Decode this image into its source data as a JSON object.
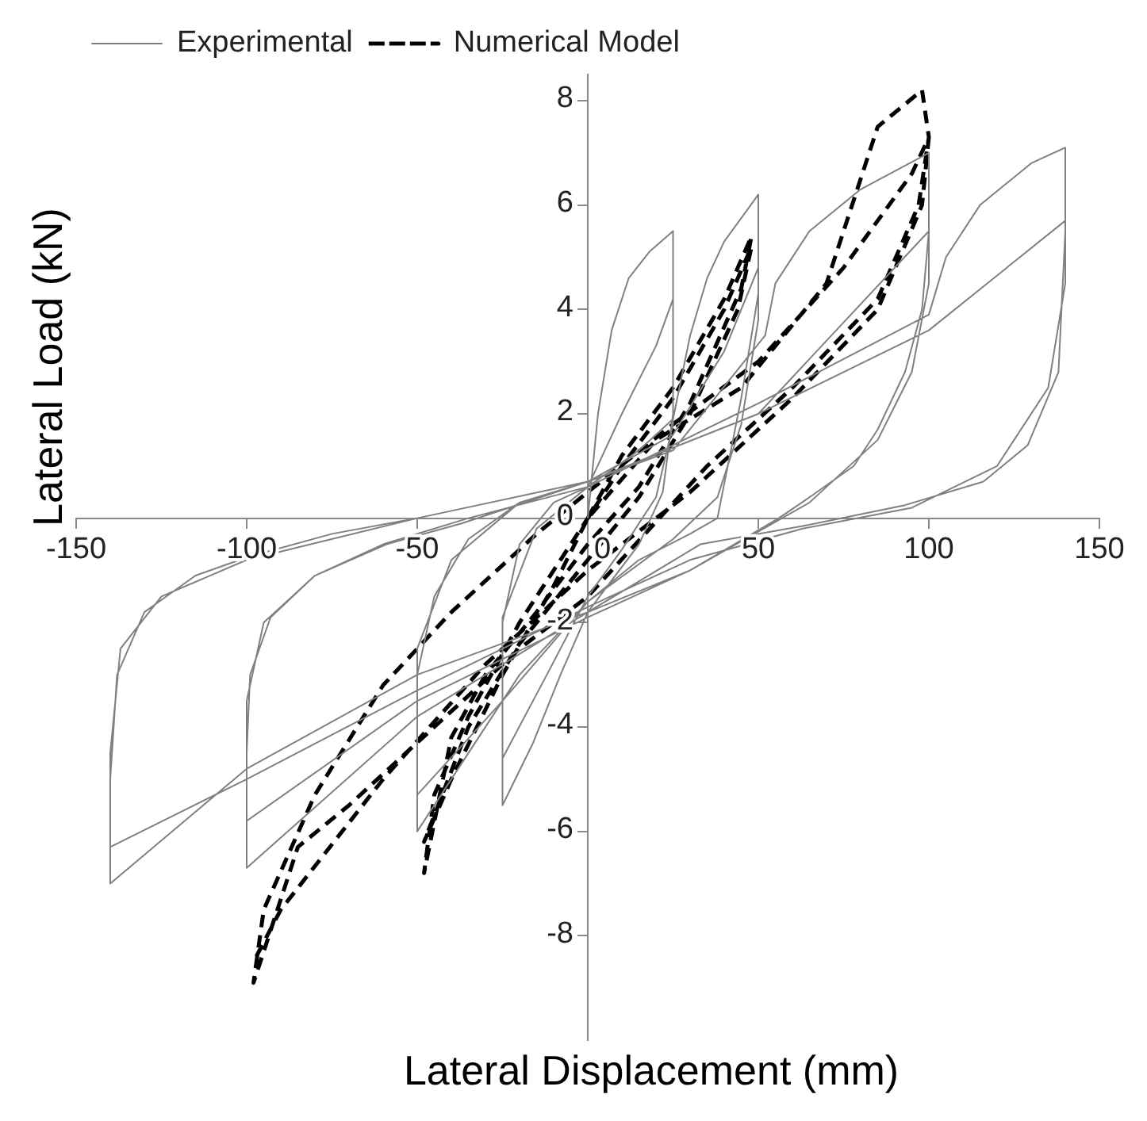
{
  "chart_data": {
    "type": "line",
    "xlabel": "Lateral Displacement (mm)",
    "ylabel": "Lateral Load (kN)",
    "xlim": [
      -150,
      150
    ],
    "ylim": [
      -10,
      8.5
    ],
    "xticks": [
      -150,
      -100,
      -50,
      0,
      50,
      100,
      150
    ],
    "yticks": [
      -8,
      -6,
      -4,
      -2,
      0,
      2,
      4,
      6,
      8
    ],
    "grid": false,
    "legend": "top left",
    "marker": "none",
    "series": [
      {
        "name": "Experimental",
        "color": "#808080",
        "line_style": "solid",
        "x": [
          0,
          3,
          7,
          12,
          18,
          25,
          25,
          22,
          15,
          0,
          -8,
          -16,
          -25,
          -25,
          -20,
          -10,
          0,
          10,
          20,
          25,
          25,
          20,
          10,
          0,
          -12,
          -25,
          -25,
          -15,
          0,
          15,
          25,
          30,
          35,
          40,
          50,
          50,
          45,
          38,
          30,
          15,
          0,
          -20,
          -35,
          -50,
          -50,
          -45,
          -35,
          -20,
          0,
          25,
          40,
          50,
          50,
          45,
          38,
          25,
          0,
          -25,
          -50,
          -50,
          -40,
          -20,
          0,
          25,
          52,
          55,
          65,
          80,
          100,
          100,
          98,
          93,
          85,
          78,
          65,
          56,
          30,
          0,
          -50,
          -100,
          -100,
          -99,
          -93,
          -80,
          -59,
          -37,
          0,
          50,
          100,
          100,
          95,
          85,
          65,
          30,
          0,
          -50,
          -100,
          -100,
          -95,
          -80,
          -60,
          -35,
          0,
          50,
          100,
          105,
          115,
          130,
          140,
          140,
          138,
          129,
          116,
          93,
          63,
          33,
          0,
          -50,
          -100,
          -140,
          -140,
          -138,
          -130,
          -115,
          -100,
          -75,
          -50,
          0,
          50,
          100,
          140,
          140,
          135,
          120,
          95,
          63,
          30,
          0,
          -50,
          -100,
          -140,
          -140,
          -137,
          -125,
          -100,
          -50,
          0
        ],
        "values": [
          0,
          2,
          3.6,
          4.6,
          5.1,
          5.5,
          2,
          0.5,
          -0.5,
          -1.8,
          -3,
          -4.3,
          -5.5,
          -2,
          -0.5,
          0.3,
          0.6,
          2,
          3.3,
          4.2,
          1.8,
          0.4,
          -0.6,
          -1.5,
          -3,
          -4.6,
          -1.9,
          -0.2,
          0.6,
          1.3,
          1.9,
          3.5,
          4.6,
          5.3,
          6.2,
          4.3,
          2.3,
          0,
          -0.3,
          -0.8,
          -1.6,
          -3,
          -4.5,
          -6,
          -3,
          -1.5,
          -0.4,
          0.3,
          0.7,
          1.6,
          3.2,
          4.8,
          3.8,
          1.8,
          0.4,
          -0.4,
          -1.6,
          -3.5,
          -5.3,
          -2.5,
          -0.8,
          0.3,
          0.7,
          1.3,
          3.5,
          4.5,
          5.5,
          6.3,
          7,
          5.5,
          4,
          2.8,
          1.7,
          1,
          0.4,
          0,
          -1,
          -1.8,
          -3.8,
          -6.7,
          -4.5,
          -3,
          -1.9,
          -1.1,
          -0.5,
          -0.1,
          0.7,
          2,
          5.5,
          4.5,
          2.8,
          1.5,
          0.3,
          -1,
          -1.9,
          -3.5,
          -5.8,
          -3.5,
          -2,
          -1.1,
          -0.5,
          0,
          0.6,
          2.2,
          3.9,
          5,
          6,
          6.8,
          7.1,
          5.5,
          2.8,
          1.4,
          0.7,
          0.25,
          -0.15,
          -0.5,
          -1.8,
          -3,
          -4.8,
          -7,
          -5,
          -3,
          -1.8,
          -1.1,
          -0.75,
          -0.3,
          0,
          0.7,
          2,
          3.6,
          5.7,
          4.5,
          2.5,
          1,
          0.2,
          -0.2,
          -0.8,
          -1.7,
          -3.3,
          -5,
          -6.3,
          -4.5,
          -2.5,
          -1.5,
          -0.8,
          0,
          0.7
        ]
      },
      {
        "name": "Numerical Model",
        "color": "#000000",
        "line_style": "dashed",
        "x": [
          0,
          10,
          25,
          40,
          48,
          45,
          30,
          15,
          0,
          -15,
          -30,
          -40,
          -48,
          -45,
          -35,
          -20,
          -5,
          10,
          25,
          40,
          48,
          44,
          30,
          15,
          0,
          -20,
          -35,
          -48,
          -40,
          -25,
          -10,
          0,
          20,
          45,
          70,
          85,
          98,
          100,
          97,
          85,
          60,
          35,
          0,
          -20,
          -45,
          -70,
          -85,
          -98,
          -95,
          -80,
          -60,
          -40,
          -15,
          0,
          25,
          50,
          75,
          95,
          100,
          98,
          85,
          60,
          30,
          0,
          -30,
          -60,
          -90,
          -98
        ],
        "values": [
          0,
          1.2,
          2.5,
          4.2,
          5.4,
          4.4,
          2.2,
          0.6,
          -0.5,
          -1.8,
          -3,
          -4.2,
          -6.8,
          -5.3,
          -3.8,
          -2,
          -0.5,
          1,
          2.3,
          4,
          5.2,
          4,
          2,
          0.4,
          -0.8,
          -2.4,
          -4,
          -6.2,
          -5,
          -3,
          -1.3,
          0,
          1.5,
          2.5,
          4.5,
          7.5,
          8.2,
          7.3,
          6,
          4.2,
          2.5,
          1,
          -1.5,
          -2.5,
          -4,
          -5.5,
          -6.3,
          -8.9,
          -7.5,
          -5.3,
          -3.2,
          -1.8,
          -0.3,
          0.5,
          1.8,
          3,
          4.8,
          6.6,
          7.3,
          6,
          4,
          2.3,
          0.5,
          -1,
          -2.8,
          -5,
          -7.5,
          -8.5
        ]
      }
    ]
  }
}
